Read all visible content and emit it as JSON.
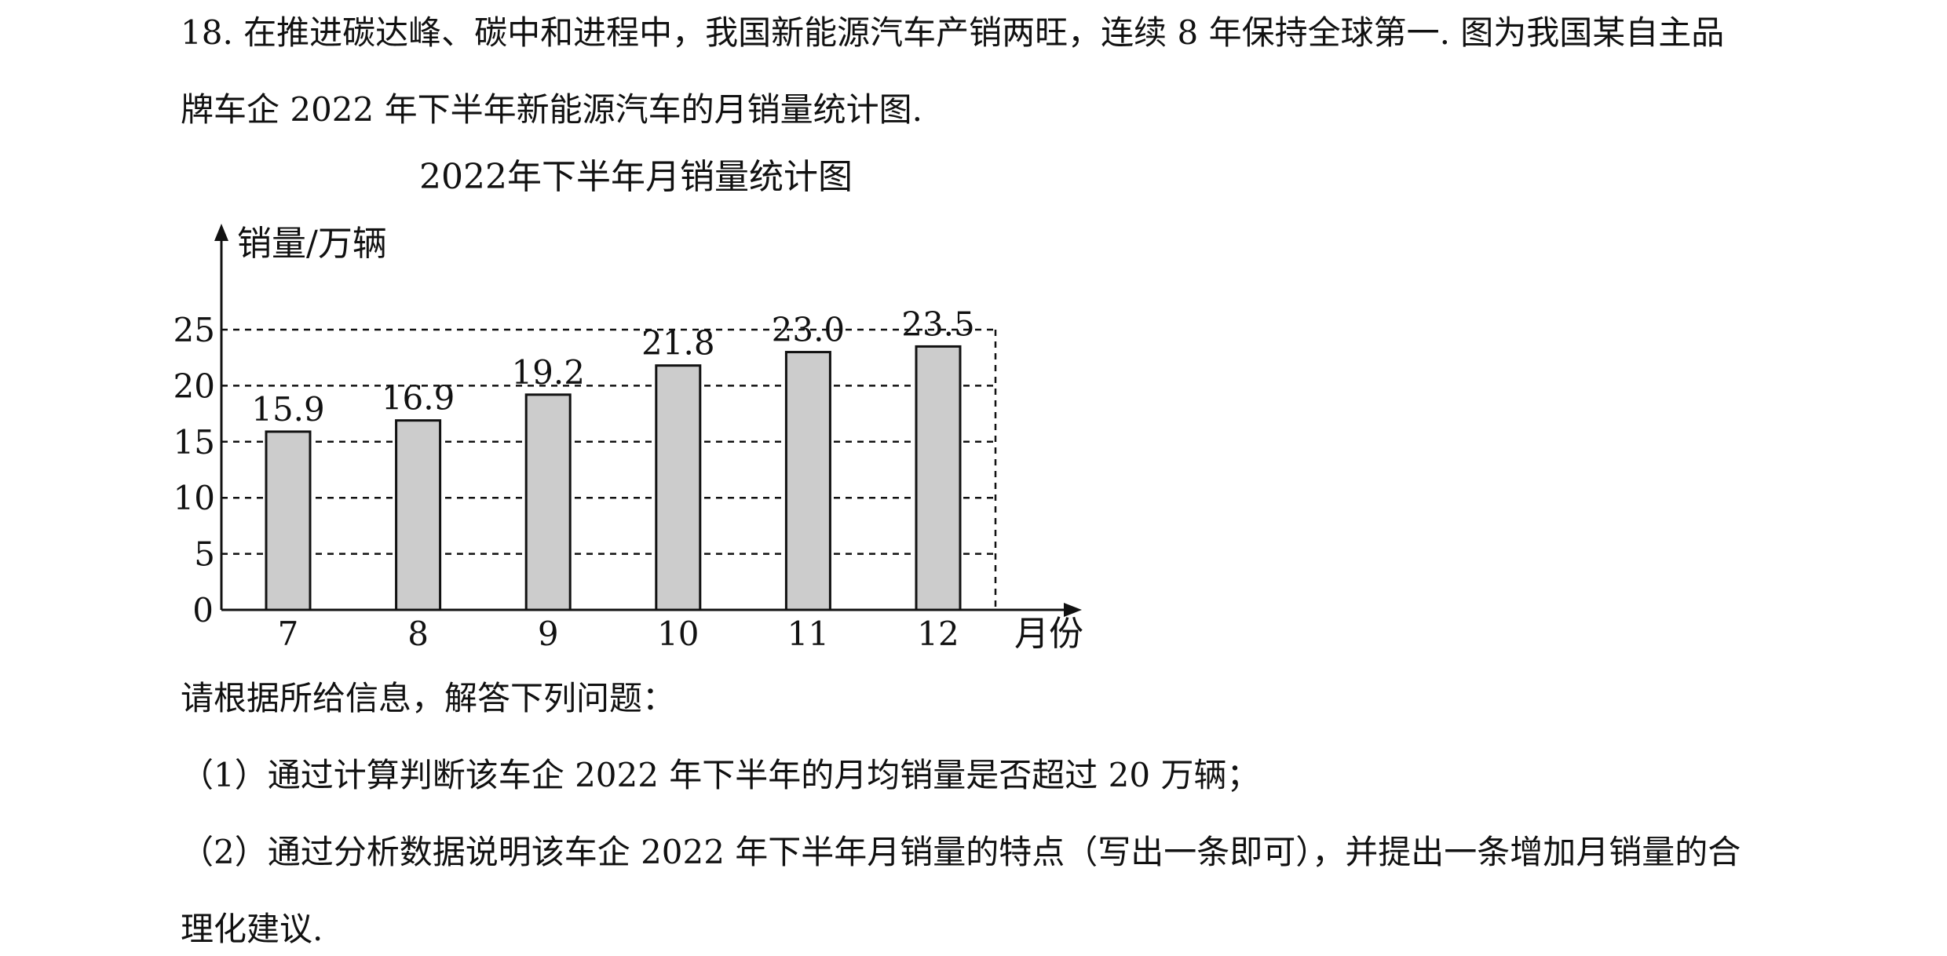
{
  "problem": {
    "line1": "18. 在推进碳达峰、碳中和进程中，我国新能源汽车产销两旺，连续 8 年保持全球第一. 图为我国某自主品",
    "line2": "牌车企 2022 年下半年新能源汽车的月销量统计图.",
    "prompt": "请根据所给信息，解答下列问题：",
    "q1": "（1）通过计算判断该车企 2022 年下半年的月均销量是否超过 20 万辆；",
    "q2_line1": "（2）通过分析数据说明该车企 2022 年下半年月销量的特点（写出一条即可），并提出一条增加月销量的合",
    "q2_line2": "理化建议."
  },
  "chart_data": {
    "type": "bar",
    "title": "2022年下半年月销量统计图",
    "ylabel": "销量/万辆",
    "xlabel": "月份",
    "categories": [
      "7",
      "8",
      "9",
      "10",
      "11",
      "12"
    ],
    "values": [
      15.9,
      16.9,
      19.2,
      21.8,
      23.0,
      23.5
    ],
    "value_labels": [
      "15.9",
      "16.9",
      "19.2",
      "21.8",
      "23.0",
      "23.5"
    ],
    "yticks": [
      0,
      5,
      10,
      15,
      20,
      25
    ],
    "ylim": [
      0,
      25
    ],
    "grid": "dashed horizontal",
    "bar_color": "#cccccc",
    "bar_edge_color": "#111111"
  }
}
